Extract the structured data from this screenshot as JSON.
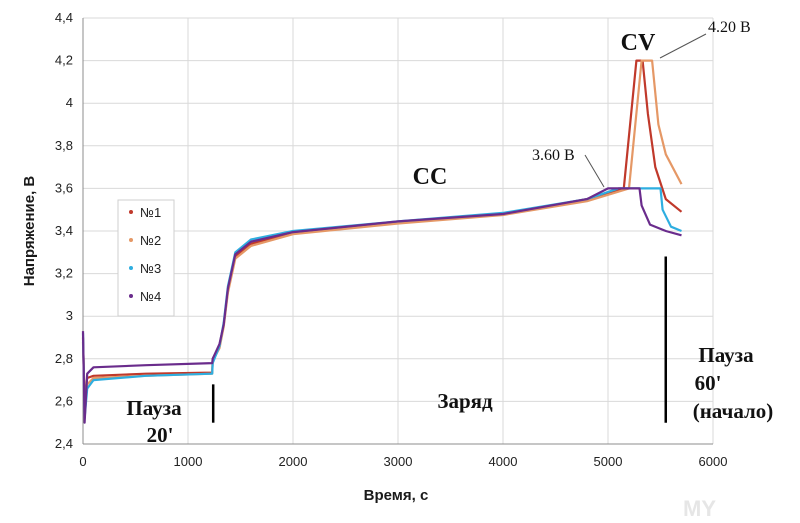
{
  "chart_data": {
    "type": "line",
    "xlabel": "Время, с",
    "ylabel": "Напряжение, В",
    "xlim": [
      0,
      6000
    ],
    "ylim": [
      2.4,
      4.4
    ],
    "x_ticks": [
      "0",
      "1000",
      "2000",
      "3000",
      "4000",
      "5000",
      "6000"
    ],
    "y_ticks": [
      "2,4",
      "2,6",
      "2,8",
      "3",
      "3,2",
      "3,4",
      "3,6",
      "3,8",
      "4",
      "4,2",
      "4,4"
    ],
    "grid": true,
    "legend_position": "left",
    "series": [
      {
        "name": "№1",
        "color": "#c0392b",
        "points": [
          [
            0,
            2.9
          ],
          [
            15,
            2.6
          ],
          [
            40,
            2.71
          ],
          [
            100,
            2.72
          ],
          [
            600,
            2.73
          ],
          [
            1230,
            2.735
          ],
          [
            1235,
            2.8
          ],
          [
            1300,
            2.86
          ],
          [
            1340,
            2.96
          ],
          [
            1380,
            3.12
          ],
          [
            1450,
            3.28
          ],
          [
            1600,
            3.34
          ],
          [
            2000,
            3.39
          ],
          [
            3000,
            3.44
          ],
          [
            4000,
            3.48
          ],
          [
            4800,
            3.55
          ],
          [
            5150,
            3.6
          ],
          [
            5270,
            4.2
          ],
          [
            5310,
            4.2
          ],
          [
            5330,
            4.2
          ],
          [
            5380,
            3.95
          ],
          [
            5450,
            3.7
          ],
          [
            5550,
            3.55
          ],
          [
            5700,
            3.49
          ]
        ]
      },
      {
        "name": "№2",
        "color": "#e59866",
        "points": [
          [
            0,
            2.88
          ],
          [
            15,
            2.57
          ],
          [
            40,
            2.68
          ],
          [
            100,
            2.71
          ],
          [
            600,
            2.72
          ],
          [
            1230,
            2.73
          ],
          [
            1235,
            2.79
          ],
          [
            1300,
            2.85
          ],
          [
            1340,
            2.95
          ],
          [
            1380,
            3.11
          ],
          [
            1450,
            3.27
          ],
          [
            1600,
            3.33
          ],
          [
            2000,
            3.385
          ],
          [
            3000,
            3.435
          ],
          [
            4000,
            3.475
          ],
          [
            4800,
            3.54
          ],
          [
            5200,
            3.6
          ],
          [
            5320,
            4.2
          ],
          [
            5380,
            4.2
          ],
          [
            5420,
            4.2
          ],
          [
            5480,
            3.9
          ],
          [
            5550,
            3.76
          ],
          [
            5700,
            3.62
          ]
        ]
      },
      {
        "name": "№3",
        "color": "#2eaee0",
        "points": [
          [
            0,
            2.92
          ],
          [
            15,
            2.52
          ],
          [
            40,
            2.66
          ],
          [
            100,
            2.7
          ],
          [
            600,
            2.72
          ],
          [
            1230,
            2.73
          ],
          [
            1235,
            2.78
          ],
          [
            1300,
            2.86
          ],
          [
            1340,
            2.97
          ],
          [
            1380,
            3.14
          ],
          [
            1450,
            3.3
          ],
          [
            1600,
            3.36
          ],
          [
            2000,
            3.4
          ],
          [
            3000,
            3.445
          ],
          [
            4000,
            3.485
          ],
          [
            4800,
            3.55
          ],
          [
            5100,
            3.6
          ],
          [
            5500,
            3.6
          ],
          [
            5520,
            3.5
          ],
          [
            5600,
            3.42
          ],
          [
            5700,
            3.4
          ]
        ]
      },
      {
        "name": "№4",
        "color": "#6a2c8c",
        "points": [
          [
            0,
            2.93
          ],
          [
            15,
            2.5
          ],
          [
            40,
            2.73
          ],
          [
            100,
            2.76
          ],
          [
            600,
            2.77
          ],
          [
            1230,
            2.78
          ],
          [
            1235,
            2.8
          ],
          [
            1300,
            2.87
          ],
          [
            1340,
            2.96
          ],
          [
            1380,
            3.13
          ],
          [
            1450,
            3.29
          ],
          [
            1600,
            3.35
          ],
          [
            2000,
            3.395
          ],
          [
            3000,
            3.445
          ],
          [
            4000,
            3.48
          ],
          [
            4800,
            3.55
          ],
          [
            5000,
            3.6
          ],
          [
            5300,
            3.6
          ],
          [
            5320,
            3.52
          ],
          [
            5400,
            3.43
          ],
          [
            5550,
            3.4
          ],
          [
            5700,
            3.38
          ]
        ]
      }
    ],
    "annotations": {
      "cv": "CV",
      "cc": "CC",
      "v420": "4.20 В",
      "v360": "3.60 В",
      "pause20_a": "Пауза",
      "pause20_b": "20'",
      "charge": "Заряд",
      "pause60_a": "Пауза",
      "pause60_b": "60'",
      "pause60_c": "(начало)"
    },
    "watermark": "MY"
  }
}
